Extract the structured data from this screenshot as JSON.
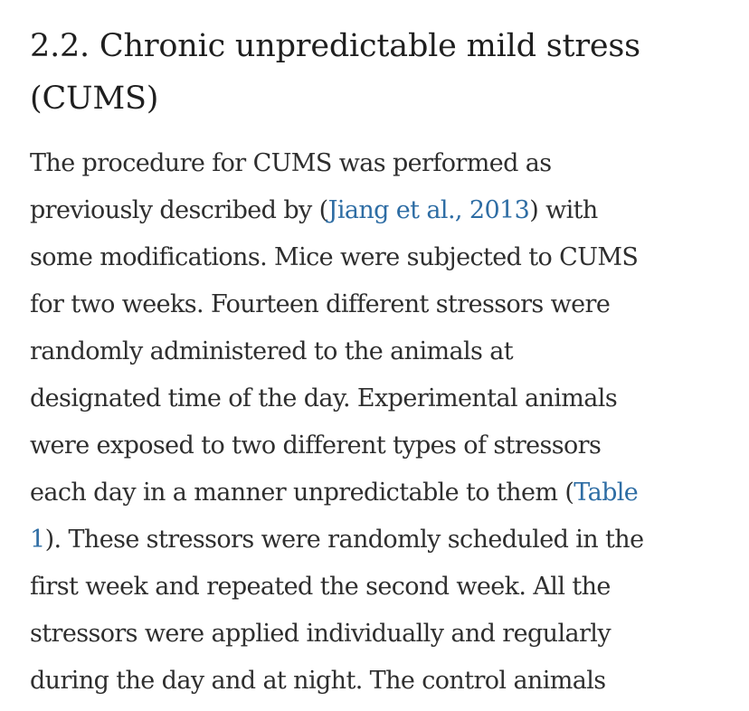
{
  "section": {
    "heading_lines": [
      "2.2. Chronic unpredictable mild stress",
      "(CUMS)"
    ]
  },
  "paragraph": {
    "l1": "The procedure for CUMS was performed as",
    "l2_before": "previously described by (",
    "l2_link": "Jiang et al., 2013",
    "l2_after": ") with",
    "l3": "some modifications. Mice were subjected to CUMS",
    "l4": "for two weeks. Fourteen different stressors were",
    "l5": "randomly administered to the animals at",
    "l6": "designated time of the day. Experimental animals",
    "l7": "were exposed to two different types of stressors",
    "l8_before": "each day in a manner unpredictable to them (",
    "l8_link": "Table",
    "l9_link": "1",
    "l9_after": "). These stressors were randomly scheduled in the",
    "l10": "first week and repeated the second week. All the",
    "l11": "stressors were applied individually and regularly",
    "l12": "during the day and at night. The control animals"
  }
}
